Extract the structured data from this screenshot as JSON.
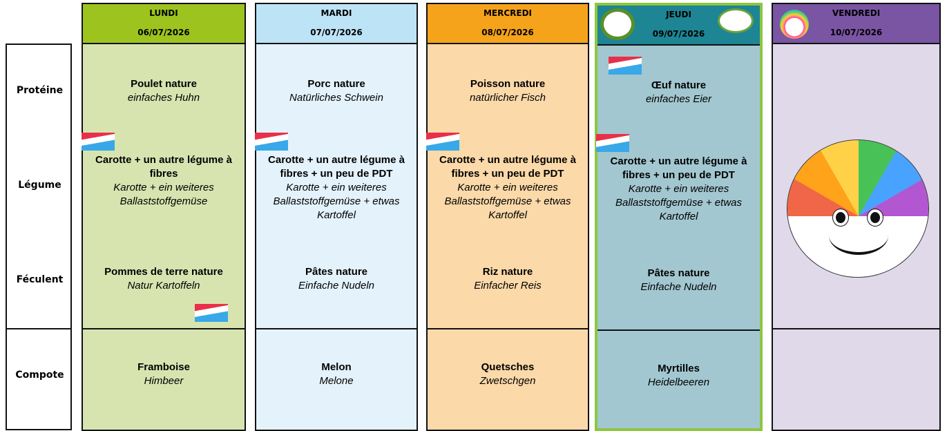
{
  "row_labels": [
    "Protéine",
    "Légume",
    "Féculent",
    "Compote"
  ],
  "days": [
    {
      "name": "LUNDI",
      "date": "06/07/2026",
      "proteine": {
        "fr": "Poulet nature",
        "de": "einfaches Huhn"
      },
      "legume": {
        "fr": "Carotte + un autre légume à fibres",
        "de": "Karotte + ein weiteres Ballaststoffgemüse"
      },
      "feculent": {
        "fr": "Pommes de terre nature",
        "de": "Natur Kartoffeln"
      },
      "compote": {
        "fr": "Framboise",
        "de": "Himbeer"
      }
    },
    {
      "name": "MARDI",
      "date": "07/07/2026",
      "proteine": {
        "fr": "Porc nature",
        "de": "Natürliches Schwein"
      },
      "legume": {
        "fr": "Carotte + un autre légume à fibres + un peu de PDT",
        "de": "Karotte + ein weiteres Ballaststoffgemüse + etwas Kartoffel"
      },
      "feculent": {
        "fr": "Pâtes nature",
        "de": "Einfache Nudeln"
      },
      "compote": {
        "fr": "Melon",
        "de": "Melone"
      }
    },
    {
      "name": "MERCREDI",
      "date": "08/07/2026",
      "proteine": {
        "fr": "Poisson nature",
        "de": "natürlicher Fisch"
      },
      "legume": {
        "fr": "Carotte + un autre légume à fibres + un peu de PDT",
        "de": "Karotte + ein weiteres Ballaststoffgemüse + etwas Kartoffel"
      },
      "feculent": {
        "fr": "Riz nature",
        "de": "Einfacher Reis"
      },
      "compote": {
        "fr": "Quetsches",
        "de": "Zwetschgen"
      }
    },
    {
      "name": "JEUDI",
      "date": "09/07/2026",
      "proteine": {
        "fr": "Œuf nature",
        "de": "einfaches Eier"
      },
      "legume": {
        "fr": "Carotte + un autre légume à fibres + un peu de PDT",
        "de": "Karotte + ein weiteres Ballaststoffgemüse + etwas Kartoffel"
      },
      "feculent": {
        "fr": "Pâtes nature",
        "de": "Einfache Nudeln"
      },
      "compote": {
        "fr": "Myrtilles",
        "de": "Heidelbeeren"
      }
    },
    {
      "name": "VENDREDI",
      "date": "10/07/2026"
    }
  ]
}
